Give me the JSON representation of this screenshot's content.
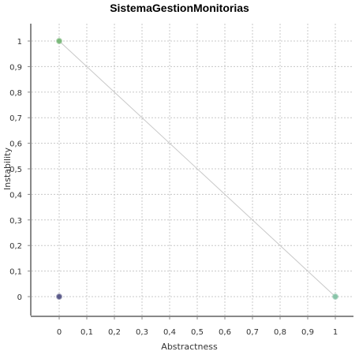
{
  "chart_data": {
    "type": "scatter",
    "title": "SistemaGestionMonitorias",
    "xlabel": "Abstractness",
    "ylabel": "Instability",
    "xlim": [
      0,
      1
    ],
    "ylim": [
      0,
      1
    ],
    "x_ticks": [
      "0",
      "0,1",
      "0,2",
      "0,3",
      "0,4",
      "0,5",
      "0,6",
      "0,7",
      "0,8",
      "0,9",
      "1"
    ],
    "y_ticks": [
      "0",
      "0,1",
      "0,2",
      "0,3",
      "0,4",
      "0,5",
      "0,6",
      "0,7",
      "0,8",
      "0,9",
      "1"
    ],
    "grid": true,
    "main_sequence": [
      {
        "x": 0,
        "y": 1
      },
      {
        "x": 1,
        "y": 0
      }
    ],
    "points": [
      {
        "x": 0,
        "y": 1,
        "color": "#7ab87a"
      },
      {
        "x": 1,
        "y": 0,
        "color": "#88c4a8"
      },
      {
        "x": 0,
        "y": 0,
        "color": "#5b5b8a"
      }
    ],
    "colors": {
      "grid": "#c8c8c8",
      "axis": "#888888",
      "line": "#c8c8c8"
    }
  }
}
